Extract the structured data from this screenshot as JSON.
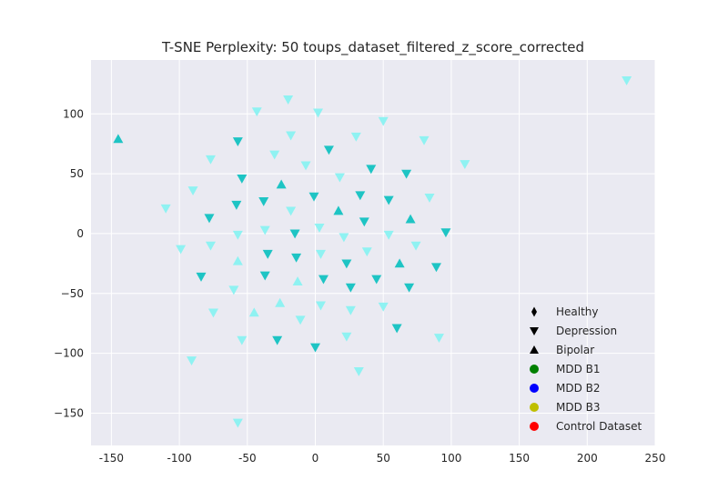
{
  "chart_data": {
    "type": "scatter",
    "title": "T-SNE Perplexity: 50 toups_dataset_filtered_z_score_corrected",
    "xlabel": "",
    "ylabel": "",
    "xlim": [
      -165,
      250
    ],
    "ylim": [
      -177,
      145
    ],
    "xticks": [
      -150,
      -100,
      -50,
      0,
      50,
      100,
      150,
      200,
      250
    ],
    "yticks": [
      -150,
      -100,
      -50,
      0,
      50,
      100
    ],
    "grid": true,
    "background": "#eaeaf2",
    "legend_position": "lower-right",
    "legend": [
      {
        "label": "Healthy",
        "marker": "diamond",
        "color": "#000000"
      },
      {
        "label": "Depression",
        "marker": "triangle-down",
        "color": "#000000"
      },
      {
        "label": "Bipolar",
        "marker": "triangle-up",
        "color": "#000000"
      },
      {
        "label": "MDD B1",
        "marker": "circle",
        "color": "#008000"
      },
      {
        "label": "MDD B2",
        "marker": "circle",
        "color": "#0000ff"
      },
      {
        "label": "MDD B3",
        "marker": "circle",
        "color": "#bfbf00"
      },
      {
        "label": "Control Dataset",
        "marker": "circle",
        "color": "#ff0000"
      }
    ],
    "colors": {
      "dark": "#1ec4c4",
      "light": "#8ff2f2"
    },
    "points": [
      {
        "x": -145,
        "y": 79,
        "marker": "triangle-up",
        "shade": "dark"
      },
      {
        "x": -110,
        "y": 21,
        "marker": "triangle-down",
        "shade": "light"
      },
      {
        "x": -99,
        "y": -13,
        "marker": "triangle-down",
        "shade": "light"
      },
      {
        "x": -90,
        "y": 36,
        "marker": "triangle-down",
        "shade": "light"
      },
      {
        "x": -91,
        "y": -106,
        "marker": "triangle-down",
        "shade": "light"
      },
      {
        "x": -84,
        "y": -36,
        "marker": "triangle-down",
        "shade": "dark"
      },
      {
        "x": -77,
        "y": 62,
        "marker": "triangle-down",
        "shade": "light"
      },
      {
        "x": -78,
        "y": 13,
        "marker": "triangle-down",
        "shade": "dark"
      },
      {
        "x": -77,
        "y": -10,
        "marker": "triangle-down",
        "shade": "light"
      },
      {
        "x": -75,
        "y": -66,
        "marker": "triangle-down",
        "shade": "light"
      },
      {
        "x": -60,
        "y": -47,
        "marker": "triangle-down",
        "shade": "light"
      },
      {
        "x": -57,
        "y": 77,
        "marker": "triangle-down",
        "shade": "dark"
      },
      {
        "x": -58,
        "y": 24,
        "marker": "triangle-down",
        "shade": "dark"
      },
      {
        "x": -57,
        "y": -1,
        "marker": "triangle-down",
        "shade": "light"
      },
      {
        "x": -57,
        "y": -23,
        "marker": "triangle-up",
        "shade": "light"
      },
      {
        "x": -54,
        "y": 46,
        "marker": "triangle-down",
        "shade": "dark"
      },
      {
        "x": -54,
        "y": -89,
        "marker": "triangle-down",
        "shade": "light"
      },
      {
        "x": -57,
        "y": -158,
        "marker": "triangle-down",
        "shade": "light"
      },
      {
        "x": -43,
        "y": 102,
        "marker": "triangle-down",
        "shade": "light"
      },
      {
        "x": -45,
        "y": -66,
        "marker": "triangle-up",
        "shade": "light"
      },
      {
        "x": -38,
        "y": 27,
        "marker": "triangle-down",
        "shade": "dark"
      },
      {
        "x": -37,
        "y": 3,
        "marker": "triangle-down",
        "shade": "light"
      },
      {
        "x": -35,
        "y": -17,
        "marker": "triangle-down",
        "shade": "dark"
      },
      {
        "x": -37,
        "y": -35,
        "marker": "triangle-down",
        "shade": "dark"
      },
      {
        "x": -30,
        "y": 66,
        "marker": "triangle-down",
        "shade": "light"
      },
      {
        "x": -28,
        "y": -89,
        "marker": "triangle-down",
        "shade": "dark"
      },
      {
        "x": -25,
        "y": 41,
        "marker": "triangle-up",
        "shade": "dark"
      },
      {
        "x": -26,
        "y": -58,
        "marker": "triangle-up",
        "shade": "light"
      },
      {
        "x": -20,
        "y": 112,
        "marker": "triangle-down",
        "shade": "light"
      },
      {
        "x": -18,
        "y": 82,
        "marker": "triangle-down",
        "shade": "light"
      },
      {
        "x": -18,
        "y": 19,
        "marker": "triangle-down",
        "shade": "light"
      },
      {
        "x": -15,
        "y": 0,
        "marker": "triangle-down",
        "shade": "dark"
      },
      {
        "x": -14,
        "y": -20,
        "marker": "triangle-down",
        "shade": "dark"
      },
      {
        "x": -13,
        "y": -40,
        "marker": "triangle-up",
        "shade": "light"
      },
      {
        "x": -11,
        "y": -72,
        "marker": "triangle-down",
        "shade": "light"
      },
      {
        "x": -7,
        "y": 57,
        "marker": "triangle-down",
        "shade": "light"
      },
      {
        "x": 2,
        "y": 101,
        "marker": "triangle-down",
        "shade": "light"
      },
      {
        "x": -1,
        "y": 31,
        "marker": "triangle-down",
        "shade": "dark"
      },
      {
        "x": 3,
        "y": 5,
        "marker": "triangle-down",
        "shade": "light"
      },
      {
        "x": 4,
        "y": -17,
        "marker": "triangle-down",
        "shade": "light"
      },
      {
        "x": 6,
        "y": -38,
        "marker": "triangle-down",
        "shade": "dark"
      },
      {
        "x": 4,
        "y": -60,
        "marker": "triangle-down",
        "shade": "light"
      },
      {
        "x": 0,
        "y": -95,
        "marker": "triangle-down",
        "shade": "dark"
      },
      {
        "x": 10,
        "y": 70,
        "marker": "triangle-down",
        "shade": "dark"
      },
      {
        "x": 17,
        "y": 19,
        "marker": "triangle-up",
        "shade": "dark"
      },
      {
        "x": 18,
        "y": 47,
        "marker": "triangle-down",
        "shade": "light"
      },
      {
        "x": 21,
        "y": -3,
        "marker": "triangle-down",
        "shade": "light"
      },
      {
        "x": 23,
        "y": -25,
        "marker": "triangle-down",
        "shade": "dark"
      },
      {
        "x": 23,
        "y": -86,
        "marker": "triangle-down",
        "shade": "light"
      },
      {
        "x": 26,
        "y": -45,
        "marker": "triangle-down",
        "shade": "dark"
      },
      {
        "x": 26,
        "y": -64,
        "marker": "triangle-down",
        "shade": "light"
      },
      {
        "x": 30,
        "y": 81,
        "marker": "triangle-down",
        "shade": "light"
      },
      {
        "x": 33,
        "y": 32,
        "marker": "triangle-down",
        "shade": "dark"
      },
      {
        "x": 36,
        "y": 10,
        "marker": "triangle-down",
        "shade": "dark"
      },
      {
        "x": 38,
        "y": -15,
        "marker": "triangle-down",
        "shade": "light"
      },
      {
        "x": 32,
        "y": -115,
        "marker": "triangle-down",
        "shade": "light"
      },
      {
        "x": 41,
        "y": 54,
        "marker": "triangle-down",
        "shade": "dark"
      },
      {
        "x": 45,
        "y": -38,
        "marker": "triangle-down",
        "shade": "dark"
      },
      {
        "x": 50,
        "y": 94,
        "marker": "triangle-down",
        "shade": "light"
      },
      {
        "x": 50,
        "y": -61,
        "marker": "triangle-down",
        "shade": "light"
      },
      {
        "x": 54,
        "y": 28,
        "marker": "triangle-down",
        "shade": "dark"
      },
      {
        "x": 54,
        "y": -1,
        "marker": "triangle-down",
        "shade": "light"
      },
      {
        "x": 60,
        "y": -79,
        "marker": "triangle-down",
        "shade": "dark"
      },
      {
        "x": 62,
        "y": -25,
        "marker": "triangle-up",
        "shade": "dark"
      },
      {
        "x": 67,
        "y": 50,
        "marker": "triangle-down",
        "shade": "dark"
      },
      {
        "x": 69,
        "y": -45,
        "marker": "triangle-down",
        "shade": "dark"
      },
      {
        "x": 70,
        "y": 12,
        "marker": "triangle-up",
        "shade": "dark"
      },
      {
        "x": 74,
        "y": -10,
        "marker": "triangle-down",
        "shade": "light"
      },
      {
        "x": 80,
        "y": 78,
        "marker": "triangle-down",
        "shade": "light"
      },
      {
        "x": 84,
        "y": 30,
        "marker": "triangle-down",
        "shade": "light"
      },
      {
        "x": 89,
        "y": -28,
        "marker": "triangle-down",
        "shade": "dark"
      },
      {
        "x": 91,
        "y": -87,
        "marker": "triangle-down",
        "shade": "light"
      },
      {
        "x": 96,
        "y": 1,
        "marker": "triangle-down",
        "shade": "dark"
      },
      {
        "x": 110,
        "y": 58,
        "marker": "triangle-down",
        "shade": "light"
      },
      {
        "x": 229,
        "y": 128,
        "marker": "triangle-down",
        "shade": "light"
      }
    ]
  }
}
